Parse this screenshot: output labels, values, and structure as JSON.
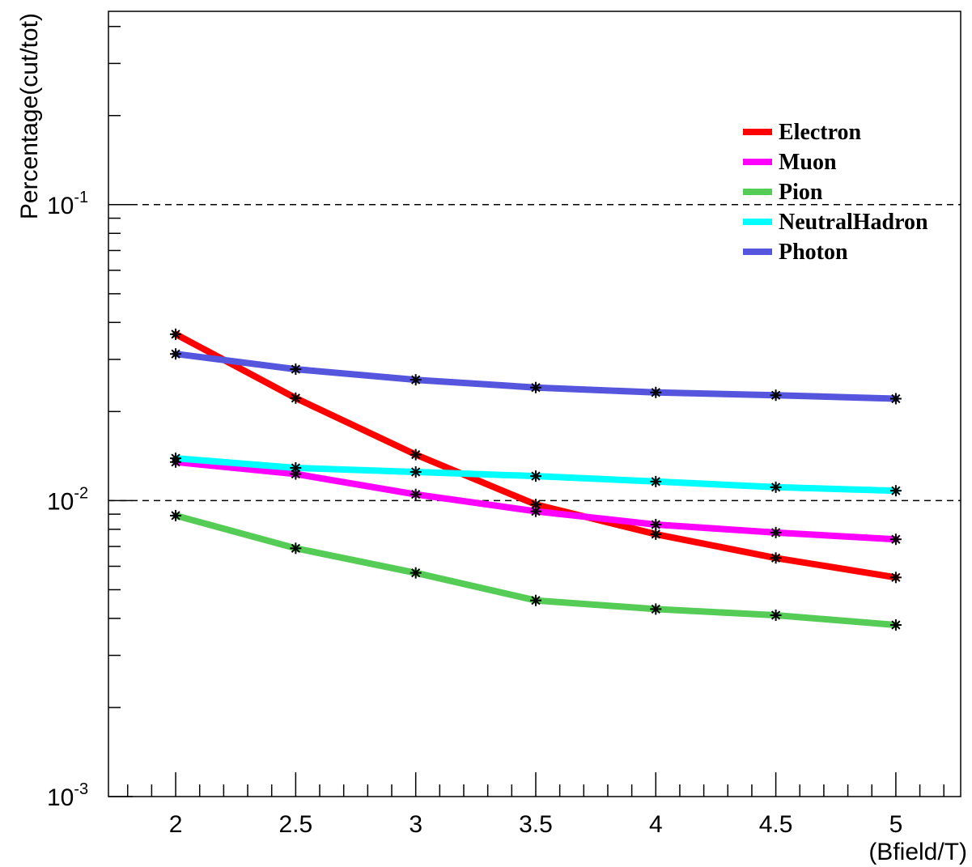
{
  "chart_data": {
    "type": "line",
    "xlabel": "(Bfield/T)",
    "ylabel": "Percentage(cut/tot)",
    "xlim": [
      1.72,
      5.27
    ],
    "ylim": [
      0.001,
      0.45
    ],
    "yscale": "log",
    "x_ticks": [
      "2",
      "2.5",
      "3",
      "3.5",
      "4",
      "4.5",
      "5"
    ],
    "y_ticks": [
      {
        "value": 0.1,
        "base": "10",
        "exp": "-1"
      },
      {
        "value": 0.01,
        "base": "10",
        "exp": "-2"
      },
      {
        "value": 0.001,
        "base": "10",
        "exp": "-3"
      }
    ],
    "grid": "dashed horizontal at 10^-1 and 10^-2",
    "legend_position": "top-right",
    "x": [
      2,
      2.5,
      3,
      3.5,
      4,
      4.5,
      5
    ],
    "series": [
      {
        "name": "Electron",
        "color": "#ff0000",
        "values": [
          0.0365,
          0.0222,
          0.0143,
          0.0097,
          0.0077,
          0.0064,
          0.0055
        ]
      },
      {
        "name": "Muon",
        "color": "#ff00ff",
        "values": [
          0.0135,
          0.0123,
          0.0105,
          0.0092,
          0.0083,
          0.0078,
          0.0074
        ]
      },
      {
        "name": "Pion",
        "color": "#55cc55",
        "values": [
          0.0089,
          0.0069,
          0.0057,
          0.0046,
          0.0043,
          0.0041,
          0.0038
        ]
      },
      {
        "name": "NeutralHadron",
        "color": "#00ffff",
        "values": [
          0.0139,
          0.0129,
          0.0125,
          0.0121,
          0.0116,
          0.0111,
          0.0108
        ]
      },
      {
        "name": "Photon",
        "color": "#5555dd",
        "values": [
          0.0313,
          0.0278,
          0.0256,
          0.0241,
          0.0232,
          0.0227,
          0.0221
        ]
      }
    ]
  }
}
